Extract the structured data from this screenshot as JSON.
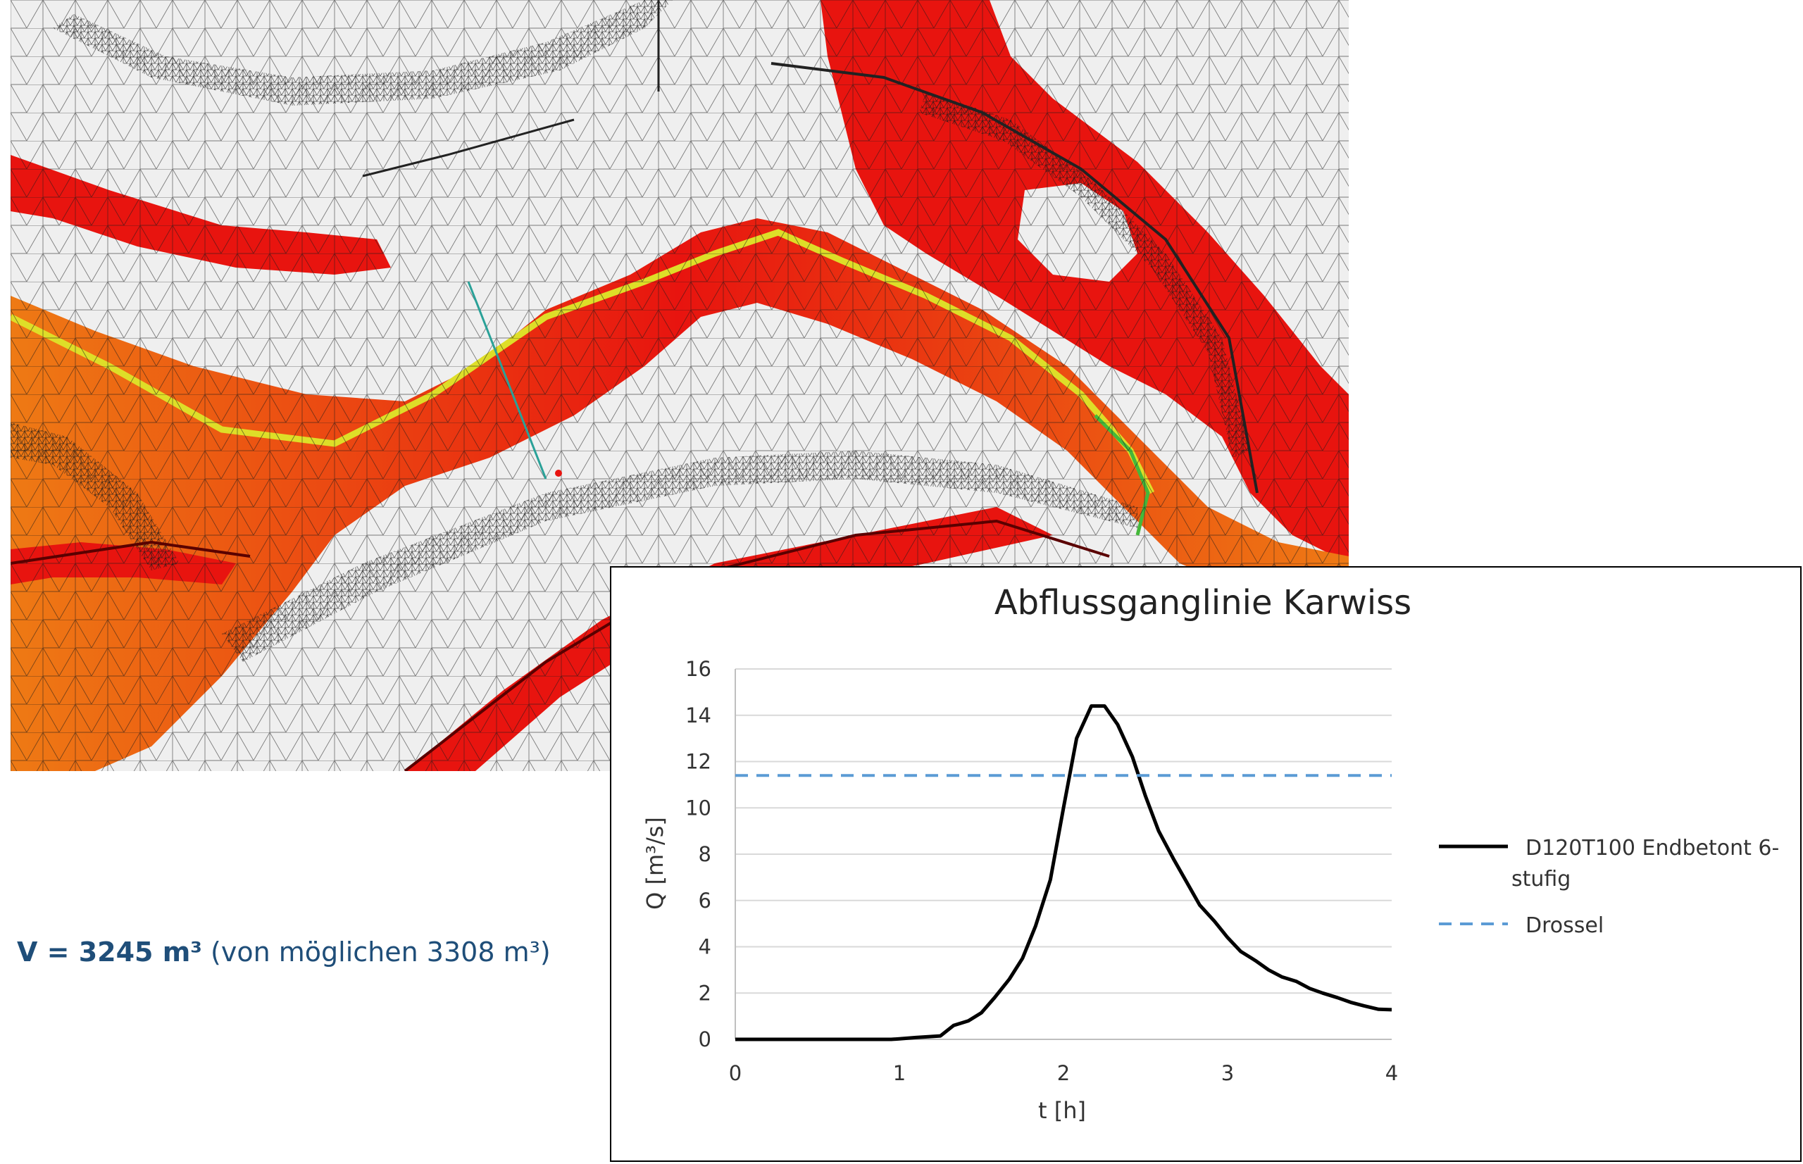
{
  "volume_label": {
    "main": "V = 3245 m³",
    "note": "(von möglichen 3308 m³)"
  },
  "mesh": {
    "colors": {
      "background": "#efefef",
      "mesh_lines": "#1a1a1a",
      "flood_red": "#e8140f",
      "flood_orange": "#ee7a14",
      "flow_yellow": "#dede28",
      "flow_green": "#44b83a",
      "section_line": "#2aa198"
    }
  },
  "chart_data": {
    "type": "line",
    "title": "Abflussganglinie Karwiss",
    "xlabel": "t [h]",
    "ylabel": "Q [m³/s]",
    "xlim": [
      0,
      4
    ],
    "ylim": [
      0,
      16
    ],
    "x_ticks": [
      "0",
      "1",
      "2",
      "3",
      "4"
    ],
    "y_ticks": [
      "0",
      "2",
      "4",
      "6",
      "8",
      "10",
      "12",
      "14",
      "16"
    ],
    "grid": true,
    "legend_position": "right",
    "series": [
      {
        "name": "D120T100 Endbetont 6-stufig",
        "legend_lines": [
          "D120T100 Endbetont 6-",
          "stufig"
        ],
        "color": "#000000",
        "style": "solid",
        "x": [
          0,
          0.25,
          0.5,
          0.75,
          0.95,
          1.0,
          1.1,
          1.25,
          1.33,
          1.42,
          1.5,
          1.58,
          1.67,
          1.75,
          1.83,
          1.92,
          2.0,
          2.08,
          2.17,
          2.25,
          2.33,
          2.42,
          2.5,
          2.58,
          2.67,
          2.75,
          2.83,
          2.92,
          3.0,
          3.08,
          3.17,
          3.25,
          3.33,
          3.42,
          3.5,
          3.58,
          3.67,
          3.75,
          3.83,
          3.92,
          4.0
        ],
        "values": [
          0,
          0,
          0,
          0,
          0,
          0.02,
          0.08,
          0.15,
          0.6,
          0.8,
          1.15,
          1.8,
          2.6,
          3.5,
          4.9,
          6.9,
          10.0,
          13.0,
          14.4,
          14.4,
          13.6,
          12.2,
          10.5,
          9.0,
          7.8,
          6.8,
          5.8,
          5.1,
          4.4,
          3.8,
          3.4,
          3.0,
          2.7,
          2.5,
          2.2,
          2.0,
          1.8,
          1.6,
          1.45,
          1.3,
          1.28
        ]
      },
      {
        "name": "Drossel",
        "legend_lines": [
          "Drossel"
        ],
        "color": "#5b9bd5",
        "style": "dashed",
        "x": [
          0,
          4
        ],
        "values": [
          11.4,
          11.4
        ]
      }
    ]
  }
}
